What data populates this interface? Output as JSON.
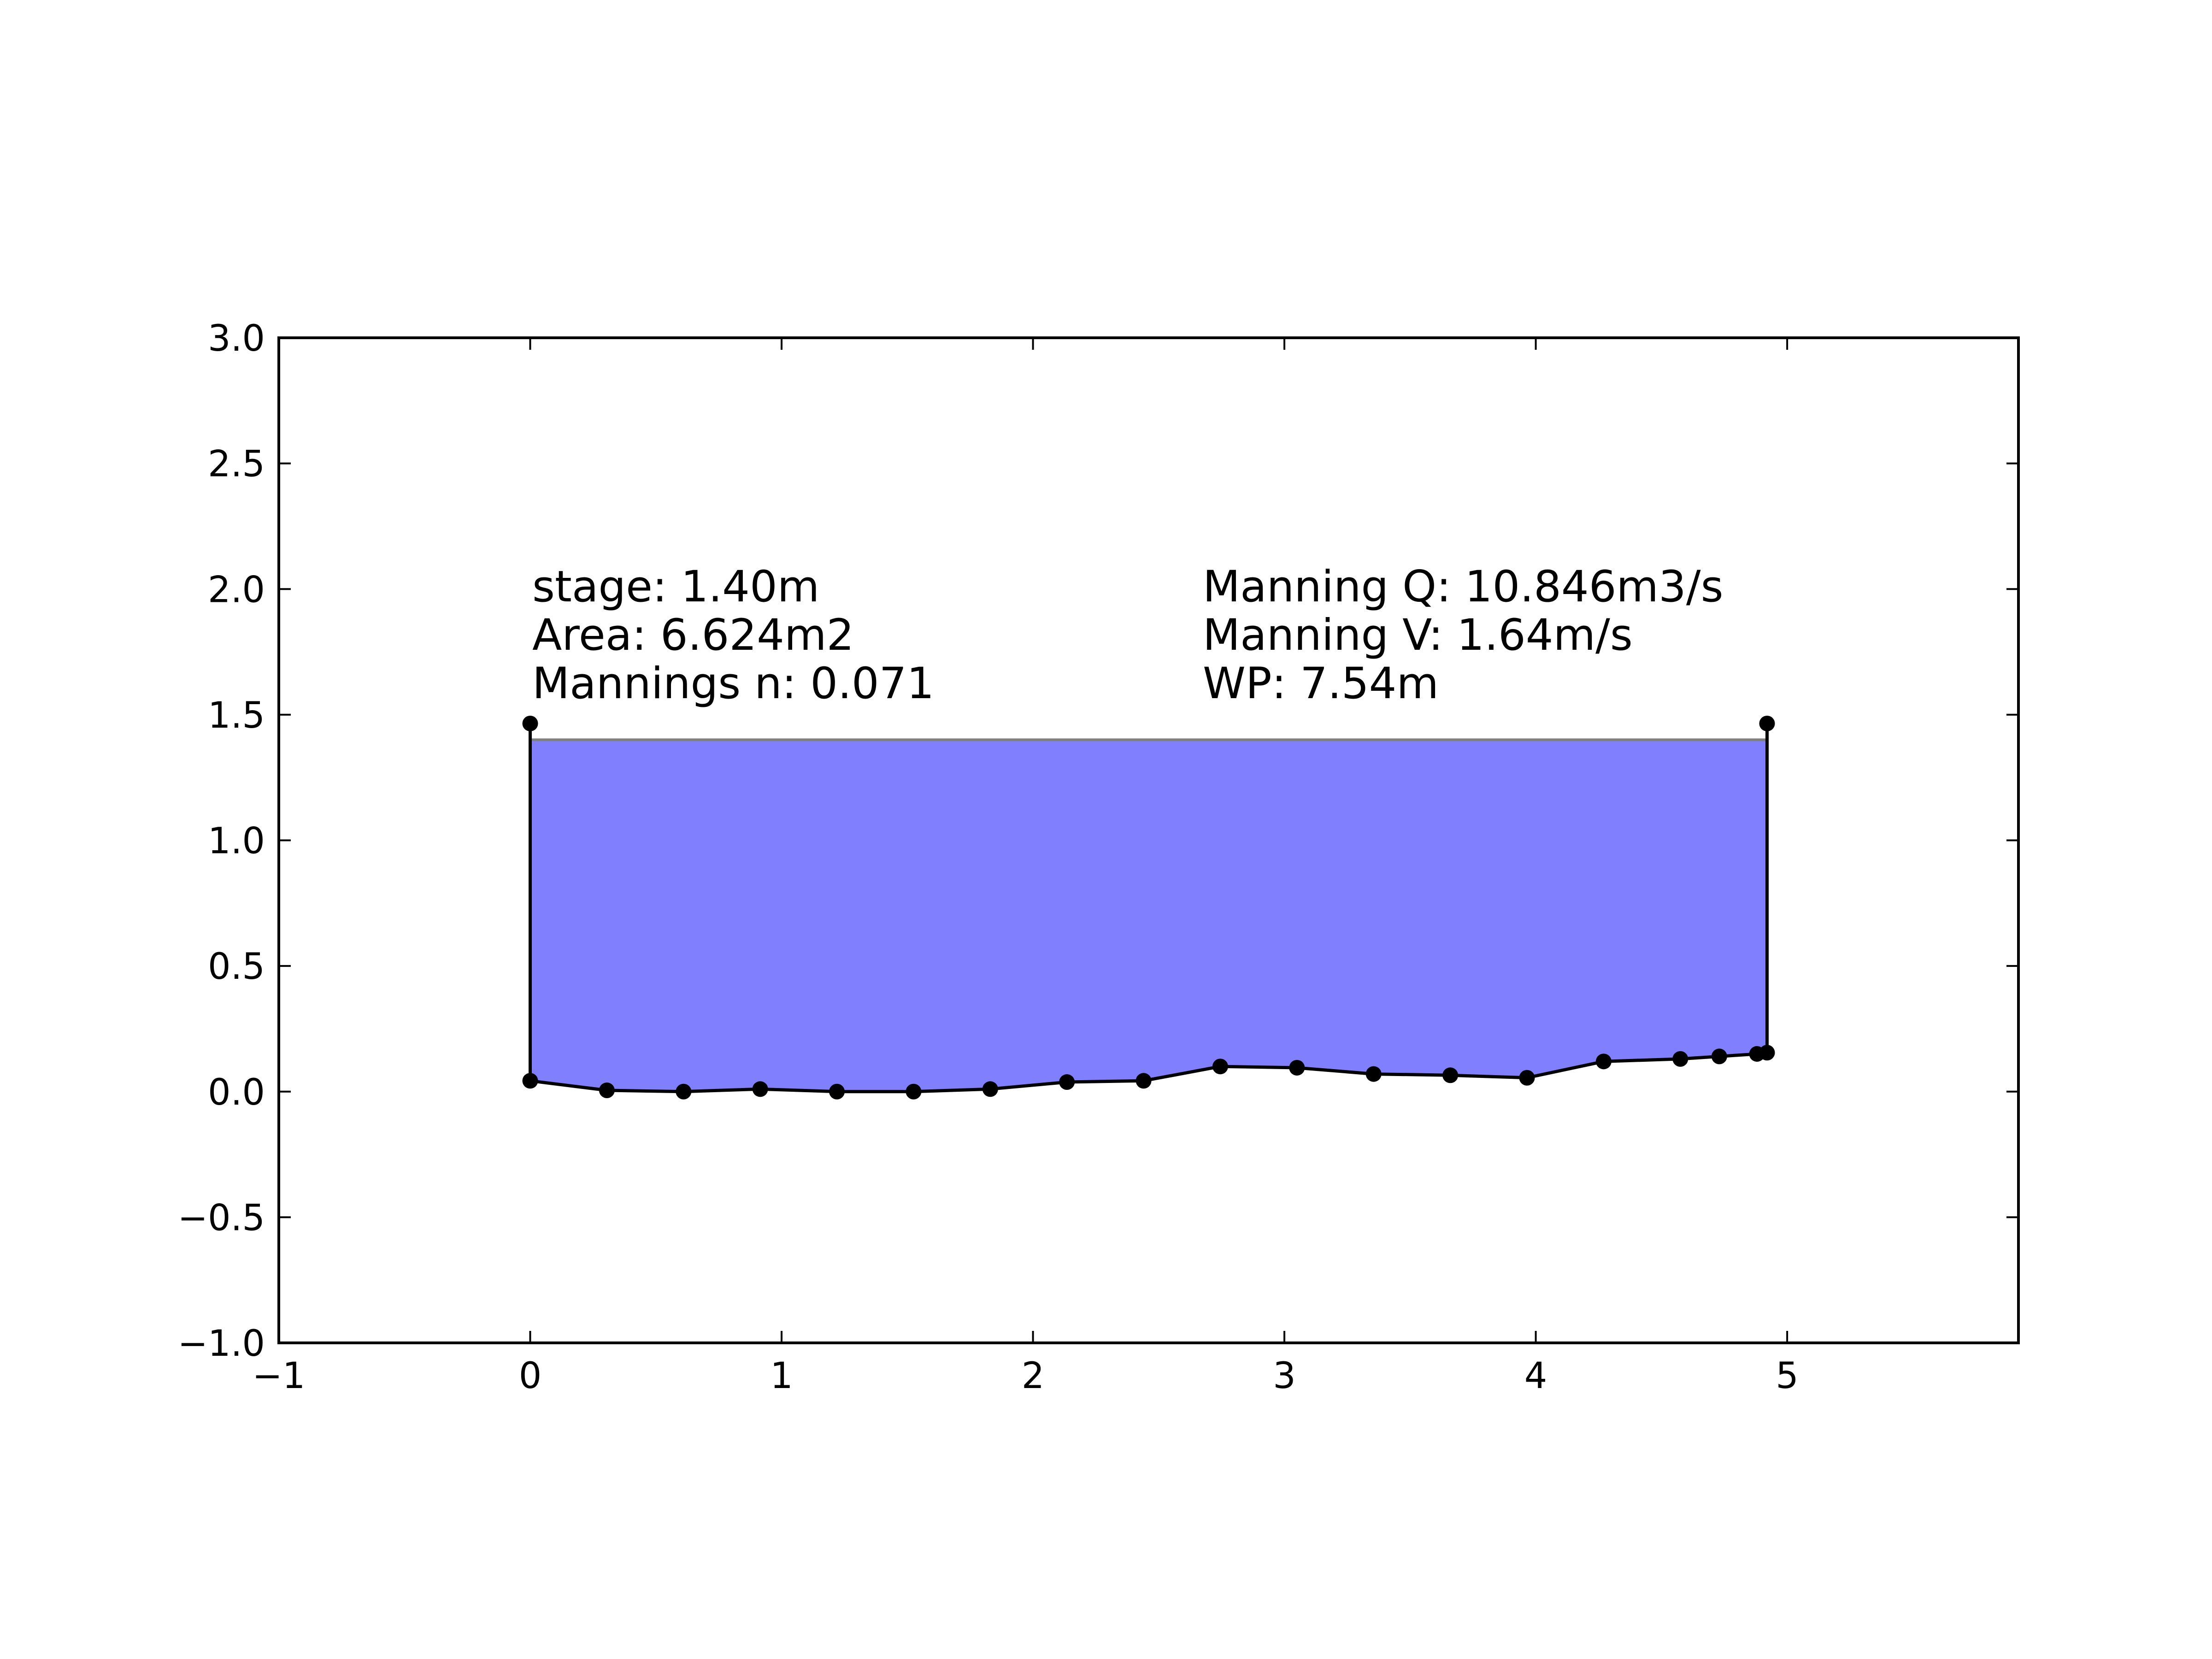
{
  "chart_data": {
    "type": "area",
    "title": "",
    "xlabel": "",
    "ylabel": "",
    "xlim": [
      -1,
      5.92
    ],
    "ylim": [
      -1.0,
      3.0
    ],
    "xticks": [
      -1,
      0,
      1,
      2,
      3,
      4,
      5
    ],
    "xtick_labels": [
      "−1",
      "0",
      "1",
      "2",
      "3",
      "4",
      "5"
    ],
    "yticks": [
      -1.0,
      -0.5,
      0.0,
      0.5,
      1.0,
      1.5,
      2.0,
      2.5,
      3.0
    ],
    "ytick_labels": [
      "−1.0",
      "−0.5",
      "0.0",
      "0.5",
      "1.0",
      "1.5",
      "2.0",
      "2.5",
      "3.0"
    ],
    "grid": false,
    "stage": 1.4,
    "fill_color": "#8080ff",
    "stage_line_color": "#808080",
    "profile": {
      "x": [
        0.0,
        0.0,
        0.305,
        0.61,
        0.915,
        1.22,
        1.525,
        1.83,
        2.135,
        2.44,
        2.745,
        3.05,
        3.355,
        3.66,
        3.965,
        4.27,
        4.575,
        4.73,
        4.88,
        4.92,
        4.92
      ],
      "y": [
        1.465,
        0.043,
        0.005,
        0.0,
        0.01,
        0.0,
        0.0,
        0.01,
        0.038,
        0.043,
        0.1,
        0.095,
        0.07,
        0.065,
        0.055,
        0.12,
        0.13,
        0.14,
        0.15,
        0.155,
        1.465
      ]
    },
    "annotations": {
      "left": [
        "stage: 1.40m",
        "Area: 6.624m2",
        "Mannings n: 0.071"
      ],
      "right": [
        "Manning Q: 10.846m3/s",
        "Manning V: 1.64m/s",
        "WP: 7.54m"
      ]
    }
  }
}
